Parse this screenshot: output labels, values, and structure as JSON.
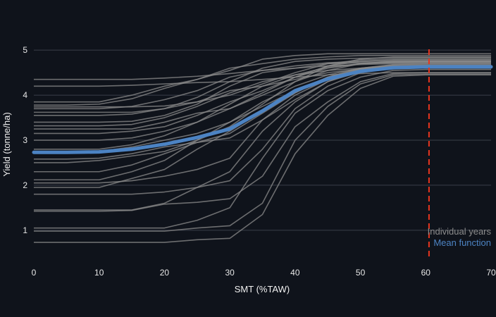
{
  "chart_data": {
    "type": "line",
    "xlabel": "SMT (%TAW)",
    "ylabel": "Yield (tonne/ha)",
    "xlim": [
      0,
      70
    ],
    "ylim": [
      0.45,
      5.3
    ],
    "x_ticks": [
      "0",
      "10",
      "20",
      "30",
      "40",
      "50",
      "60",
      "70"
    ],
    "y_ticks": [
      "1",
      "2",
      "3",
      "4",
      "5"
    ],
    "grid": "horizontal",
    "x": [
      0,
      5,
      10,
      15,
      20,
      25,
      30,
      35,
      40,
      45,
      50,
      55,
      60,
      65,
      70
    ],
    "individual_years": [
      [
        0.73,
        0.73,
        0.73,
        0.73,
        0.73,
        0.79,
        0.82,
        1.35,
        2.7,
        3.55,
        4.15,
        4.42,
        4.45,
        4.45,
        4.45
      ],
      [
        0.98,
        0.98,
        0.98,
        0.98,
        0.98,
        1.05,
        1.1,
        1.6,
        3.0,
        3.75,
        4.25,
        4.45,
        4.47,
        4.47,
        4.47
      ],
      [
        1.05,
        1.05,
        1.05,
        1.05,
        1.05,
        1.22,
        1.5,
        2.6,
        3.6,
        4.1,
        4.4,
        4.55,
        4.57,
        4.57,
        4.57
      ],
      [
        1.42,
        1.42,
        1.42,
        1.44,
        1.58,
        1.62,
        1.7,
        2.2,
        3.3,
        3.85,
        4.3,
        4.48,
        4.5,
        4.5,
        4.5
      ],
      [
        1.45,
        1.45,
        1.45,
        1.45,
        1.6,
        1.95,
        2.3,
        3.2,
        3.85,
        4.3,
        4.55,
        4.6,
        4.6,
        4.6,
        4.6
      ],
      [
        1.8,
        1.8,
        1.8,
        1.8,
        1.85,
        1.95,
        2.1,
        2.8,
        3.7,
        4.2,
        4.5,
        4.6,
        4.62,
        4.62,
        4.62
      ],
      [
        1.95,
        1.95,
        1.95,
        2.15,
        2.35,
        2.8,
        3.2,
        3.65,
        4.05,
        4.4,
        4.55,
        4.62,
        4.63,
        4.63,
        4.63
      ],
      [
        2.05,
        2.05,
        2.05,
        2.1,
        2.2,
        2.35,
        2.6,
        3.45,
        4.0,
        4.35,
        4.58,
        4.65,
        4.66,
        4.66,
        4.66
      ],
      [
        2.12,
        2.12,
        2.12,
        2.3,
        2.55,
        3.0,
        3.4,
        3.85,
        4.2,
        4.45,
        4.6,
        4.67,
        4.68,
        4.68,
        4.68
      ],
      [
        2.3,
        2.3,
        2.3,
        2.45,
        2.7,
        2.95,
        3.05,
        3.45,
        3.9,
        4.3,
        4.52,
        4.6,
        4.62,
        4.62,
        4.62
      ],
      [
        2.5,
        2.5,
        2.55,
        2.65,
        2.75,
        3.0,
        3.3,
        3.8,
        4.3,
        4.65,
        4.75,
        4.78,
        4.78,
        4.78,
        4.78
      ],
      [
        2.58,
        2.58,
        2.6,
        2.7,
        2.85,
        2.95,
        3.15,
        3.6,
        4.05,
        4.4,
        4.58,
        4.65,
        4.66,
        4.66,
        4.66
      ],
      [
        2.75,
        2.75,
        2.75,
        2.85,
        3.0,
        3.15,
        3.4,
        3.75,
        4.1,
        4.4,
        4.6,
        4.68,
        4.7,
        4.7,
        4.7
      ],
      [
        2.8,
        2.8,
        2.8,
        2.9,
        3.1,
        3.4,
        3.7,
        4.05,
        4.4,
        4.65,
        4.8,
        4.85,
        4.85,
        4.85,
        4.85
      ],
      [
        3.0,
        3.0,
        3.0,
        3.05,
        3.2,
        3.4,
        3.8,
        4.2,
        4.45,
        4.62,
        4.7,
        4.72,
        4.73,
        4.73,
        4.73
      ],
      [
        3.15,
        3.15,
        3.15,
        3.2,
        3.3,
        3.55,
        3.85,
        4.1,
        4.4,
        4.6,
        4.7,
        4.75,
        4.75,
        4.75,
        4.75
      ],
      [
        3.25,
        3.25,
        3.25,
        3.25,
        3.4,
        3.6,
        3.7,
        4.0,
        4.3,
        4.55,
        4.7,
        4.74,
        4.75,
        4.75,
        4.75
      ],
      [
        3.32,
        3.32,
        3.32,
        3.35,
        3.5,
        3.75,
        4.05,
        4.3,
        4.45,
        4.55,
        4.6,
        4.62,
        4.62,
        4.62,
        4.62
      ],
      [
        3.4,
        3.4,
        3.4,
        3.42,
        3.55,
        3.8,
        4.2,
        4.5,
        4.6,
        4.7,
        4.72,
        4.73,
        4.73,
        4.73,
        4.73
      ],
      [
        3.55,
        3.55,
        3.55,
        3.58,
        3.7,
        3.95,
        4.3,
        4.6,
        4.75,
        4.8,
        4.82,
        4.83,
        4.83,
        4.83,
        4.83
      ],
      [
        3.62,
        3.62,
        3.62,
        3.62,
        3.7,
        3.85,
        4.0,
        4.25,
        4.5,
        4.7,
        4.78,
        4.8,
        4.8,
        4.8,
        4.8
      ],
      [
        3.7,
        3.7,
        3.7,
        3.75,
        3.9,
        4.1,
        4.4,
        4.55,
        4.65,
        4.72,
        4.75,
        4.76,
        4.76,
        4.76,
        4.76
      ],
      [
        3.74,
        3.74,
        3.74,
        3.74,
        3.76,
        3.85,
        4.1,
        4.2,
        4.35,
        4.5,
        4.58,
        4.6,
        4.6,
        4.6,
        4.6
      ],
      [
        3.78,
        3.78,
        3.8,
        3.92,
        4.15,
        4.35,
        4.55,
        4.8,
        4.88,
        4.92,
        4.92,
        4.92,
        4.92,
        4.92,
        4.92
      ],
      [
        3.85,
        3.85,
        3.85,
        4.0,
        4.2,
        4.35,
        4.6,
        4.7,
        4.8,
        4.85,
        4.88,
        4.88,
        4.88,
        4.88,
        4.88
      ],
      [
        4.2,
        4.2,
        4.2,
        4.22,
        4.25,
        4.28,
        4.3,
        4.35,
        4.4,
        4.45,
        4.48,
        4.5,
        4.5,
        4.5,
        4.5
      ],
      [
        4.35,
        4.35,
        4.35,
        4.35,
        4.38,
        4.42,
        4.48,
        4.55,
        4.6,
        4.65,
        4.68,
        4.7,
        4.7,
        4.7,
        4.7
      ]
    ],
    "series": [
      {
        "name": "Mean function",
        "values": [
          2.73,
          2.73,
          2.74,
          2.8,
          2.91,
          3.06,
          3.25,
          3.65,
          4.1,
          4.36,
          4.53,
          4.61,
          4.63,
          4.63,
          4.63
        ]
      }
    ],
    "reference_line": {
      "x": 60.5,
      "color": "#e8351e",
      "style": "dashed"
    },
    "colors": {
      "individual": "#8c8c8c",
      "mean": "#4c83c3",
      "grid": "#3a3f4a",
      "background": "#0f131b"
    },
    "legend": {
      "placement": "bottom-right",
      "entries": [
        {
          "label": "Individual years",
          "color": "#8c8c8c"
        },
        {
          "label": "Mean function",
          "color": "#4c83c3"
        }
      ]
    }
  }
}
